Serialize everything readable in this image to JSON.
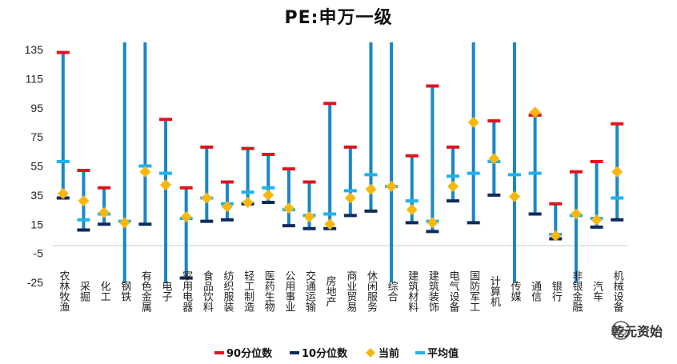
{
  "chart_data": {
    "type": "range",
    "title": "PE:申万一级",
    "ylim": [
      -25,
      140
    ],
    "yticks": [
      135,
      115,
      95,
      75,
      55,
      35,
      15,
      -5,
      -25
    ],
    "categories": [
      "农林牧渔",
      "采掘",
      "化工",
      "钢铁",
      "有色金属",
      "电子",
      "家用电器",
      "食品饮料",
      "纺织服装",
      "轻工制造",
      "医药生物",
      "公用事业",
      "交通运输",
      "房地产",
      "商业贸易",
      "休闲服务",
      "综合",
      "建筑材料",
      "建筑装饰",
      "电气设备",
      "国防军工",
      "计算机",
      "传媒",
      "通信",
      "银行",
      "非银金融",
      "汽车",
      "机械设备"
    ],
    "series": [
      {
        "name": "90分位数",
        "color": "#e0141e",
        "values": [
          133,
          52,
          40,
          140,
          140,
          87,
          40,
          68,
          44,
          67,
          63,
          53,
          44,
          98,
          68,
          140,
          140,
          62,
          110,
          68,
          140,
          86,
          140,
          90,
          29,
          51,
          58,
          84
        ]
      },
      {
        "name": "10分位数",
        "color": "#0e2a5c",
        "values": [
          33,
          11,
          15,
          -25,
          15,
          -25,
          -22,
          17,
          18,
          29,
          30,
          14,
          12,
          12,
          21,
          24,
          -25,
          16,
          10,
          31,
          16,
          35,
          -25,
          22,
          5,
          -25,
          13,
          18
        ]
      },
      {
        "name": "当前",
        "color": "#f6b80f",
        "values": [
          36,
          31,
          23,
          16,
          51,
          42,
          20,
          33,
          27,
          30,
          35,
          26,
          20,
          15,
          33,
          39,
          41,
          25,
          16,
          41,
          85,
          60,
          34,
          92,
          7,
          22,
          18,
          51
        ]
      },
      {
        "name": "平均值",
        "color": "#1fb2ee",
        "values": [
          58,
          18,
          22,
          17,
          55,
          50,
          19,
          33,
          29,
          37,
          40,
          25,
          21,
          22,
          38,
          49,
          41,
          31,
          17,
          48,
          50,
          58,
          49,
          50,
          8,
          21,
          19,
          33
        ]
      }
    ],
    "legend_position": "bottom-center",
    "grid": false
  },
  "watermark": {
    "text": "乾元资始"
  }
}
